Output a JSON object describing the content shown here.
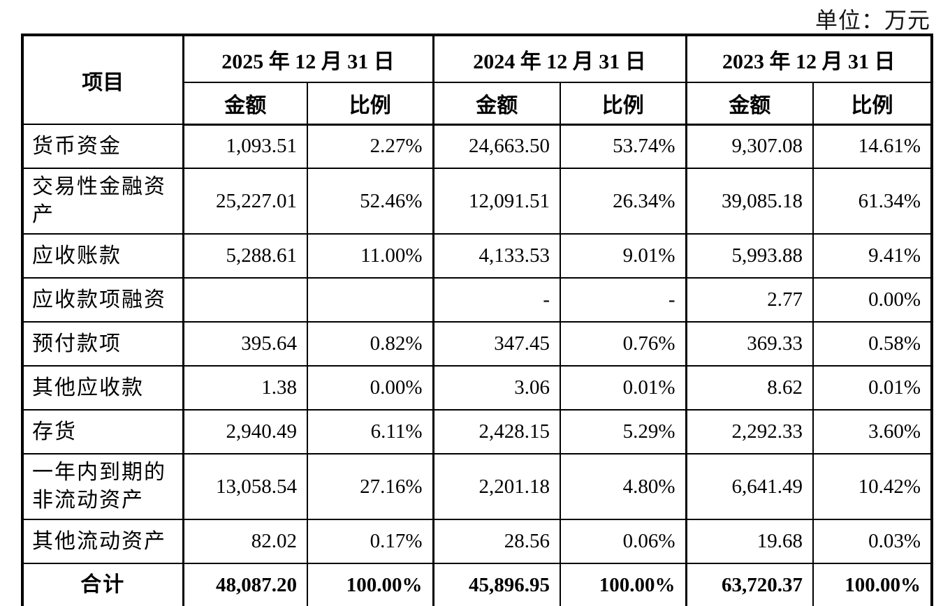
{
  "unit_label": "单位：万元",
  "table": {
    "item_header": "项目",
    "sub_headers": {
      "amount": "金额",
      "ratio": "比例"
    },
    "periods": [
      "2025 年 12 月 31 日",
      "2024 年 12 月 31 日",
      "2023 年 12 月 31 日"
    ],
    "rows": [
      {
        "item": "货币资金",
        "values": [
          "1,093.51",
          "2.27%",
          "24,663.50",
          "53.74%",
          "9,307.08",
          "14.61%"
        ],
        "is_total": false
      },
      {
        "item": "交易性金融资产",
        "values": [
          "25,227.01",
          "52.46%",
          "12,091.51",
          "26.34%",
          "39,085.18",
          "61.34%"
        ],
        "is_total": false
      },
      {
        "item": "应收账款",
        "values": [
          "5,288.61",
          "11.00%",
          "4,133.53",
          "9.01%",
          "5,993.88",
          "9.41%"
        ],
        "is_total": false
      },
      {
        "item": "应收款项融资",
        "values": [
          "",
          "",
          "-",
          "-",
          "2.77",
          "0.00%"
        ],
        "is_total": false
      },
      {
        "item": "预付款项",
        "values": [
          "395.64",
          "0.82%",
          "347.45",
          "0.76%",
          "369.33",
          "0.58%"
        ],
        "is_total": false
      },
      {
        "item": "其他应收款",
        "values": [
          "1.38",
          "0.00%",
          "3.06",
          "0.01%",
          "8.62",
          "0.01%"
        ],
        "is_total": false
      },
      {
        "item": "存货",
        "values": [
          "2,940.49",
          "6.11%",
          "2,428.15",
          "5.29%",
          "2,292.33",
          "3.60%"
        ],
        "is_total": false
      },
      {
        "item": "一年内到期的非流动资产",
        "values": [
          "13,058.54",
          "27.16%",
          "2,201.18",
          "4.80%",
          "6,641.49",
          "10.42%"
        ],
        "is_total": false
      },
      {
        "item": "其他流动资产",
        "values": [
          "82.02",
          "0.17%",
          "28.56",
          "0.06%",
          "19.68",
          "0.03%"
        ],
        "is_total": false
      },
      {
        "item": "合计",
        "values": [
          "48,087.20",
          "100.00%",
          "45,896.95",
          "100.00%",
          "63,720.37",
          "100.00%"
        ],
        "is_total": true
      }
    ]
  }
}
